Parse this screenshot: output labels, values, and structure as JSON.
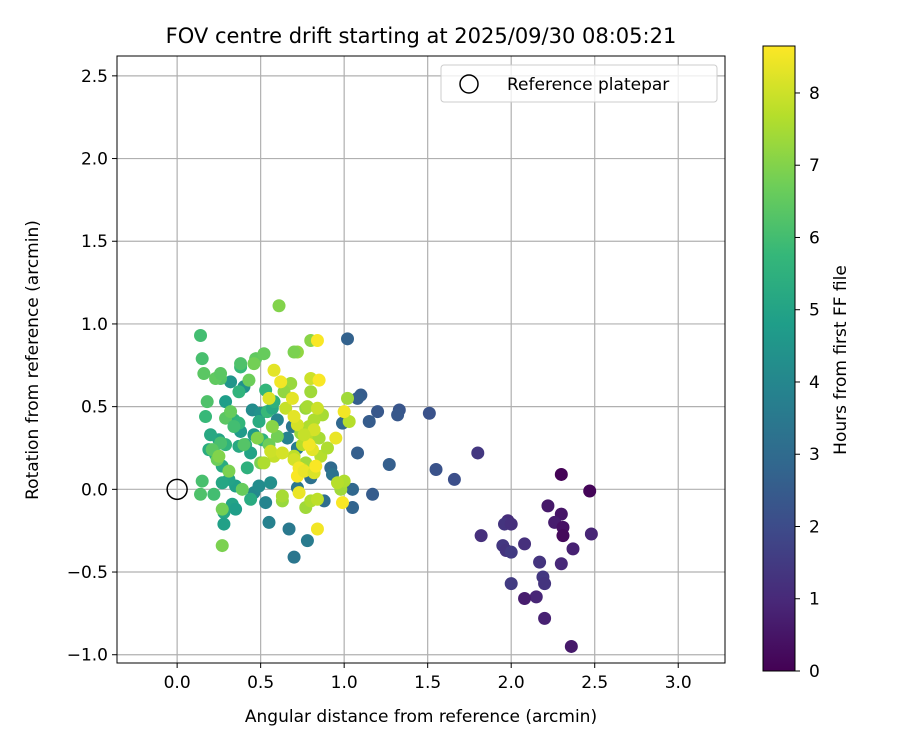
{
  "chart_data": {
    "type": "scatter",
    "title": "FOV centre drift starting at 2025/09/30 08:05:21",
    "xlabel": "Angular distance from reference (arcmin)",
    "ylabel": "Rotation from reference (arcmin)",
    "xlim": [
      -0.36,
      3.28
    ],
    "ylim": [
      -1.05,
      2.62
    ],
    "xticks": [
      0.0,
      0.5,
      1.0,
      1.5,
      2.0,
      2.5,
      3.0
    ],
    "xtick_labels": [
      "0.0",
      "0.5",
      "1.0",
      "1.5",
      "2.0",
      "2.5",
      "3.0"
    ],
    "yticks": [
      -1.0,
      -0.5,
      0.0,
      0.5,
      1.0,
      1.5,
      2.0,
      2.5
    ],
    "ytick_labels": [
      "−1.0",
      "−0.5",
      "0.0",
      "0.5",
      "1.0",
      "1.5",
      "2.0",
      "2.5"
    ],
    "grid": true,
    "legend": {
      "placement": "top-right",
      "entries": [
        {
          "label": "Reference platepar",
          "marker": "open-circle"
        }
      ]
    },
    "reference_point": {
      "x": 0.0,
      "y": 0.0
    },
    "colorbar": {
      "label": "Hours from first FF file",
      "range": [
        0,
        8.65
      ],
      "ticks": [
        0,
        1,
        2,
        3,
        4,
        5,
        6,
        7,
        8
      ],
      "tick_labels": [
        "0",
        "1",
        "2",
        "3",
        "4",
        "5",
        "6",
        "7",
        "8"
      ],
      "colormap": "viridis",
      "colors": [
        "#440154",
        "#482878",
        "#3e4989",
        "#31688e",
        "#26828e",
        "#1f9e89",
        "#35b779",
        "#6ece58",
        "#b5de2b",
        "#fde725"
      ]
    },
    "points": [
      {
        "x": 2.3,
        "y": 0.09,
        "h": 0.05
      },
      {
        "x": 2.47,
        "y": -0.01,
        "h": 0.1
      },
      {
        "x": 2.22,
        "y": -0.1,
        "h": 0.6
      },
      {
        "x": 2.3,
        "y": -0.15,
        "h": 0.5
      },
      {
        "x": 2.26,
        "y": -0.2,
        "h": 0.7
      },
      {
        "x": 2.31,
        "y": -0.23,
        "h": 0.4
      },
      {
        "x": 2.31,
        "y": -0.28,
        "h": 0.2
      },
      {
        "x": 2.48,
        "y": -0.27,
        "h": 0.9
      },
      {
        "x": 2.37,
        "y": -0.36,
        "h": 0.8
      },
      {
        "x": 1.98,
        "y": -0.19,
        "h": 1.1
      },
      {
        "x": 1.96,
        "y": -0.21,
        "h": 1.3
      },
      {
        "x": 2.0,
        "y": -0.21,
        "h": 1.2
      },
      {
        "x": 1.82,
        "y": -0.28,
        "h": 1.2
      },
      {
        "x": 1.95,
        "y": -0.34,
        "h": 1.4
      },
      {
        "x": 1.97,
        "y": -0.37,
        "h": 1.3
      },
      {
        "x": 2.0,
        "y": -0.38,
        "h": 1.5
      },
      {
        "x": 2.08,
        "y": -0.33,
        "h": 1.2
      },
      {
        "x": 2.17,
        "y": -0.44,
        "h": 1.3
      },
      {
        "x": 2.3,
        "y": -0.45,
        "h": 1.0
      },
      {
        "x": 2.19,
        "y": -0.53,
        "h": 1.4
      },
      {
        "x": 2.2,
        "y": -0.57,
        "h": 1.3
      },
      {
        "x": 2.0,
        "y": -0.57,
        "h": 1.5
      },
      {
        "x": 2.15,
        "y": -0.65,
        "h": 0.9
      },
      {
        "x": 2.08,
        "y": -0.66,
        "h": 0.7
      },
      {
        "x": 2.2,
        "y": -0.78,
        "h": 0.8
      },
      {
        "x": 2.36,
        "y": -0.95,
        "h": 0.6
      },
      {
        "x": 1.8,
        "y": 0.22,
        "h": 1.4
      },
      {
        "x": 1.51,
        "y": 0.46,
        "h": 2.2
      },
      {
        "x": 1.33,
        "y": 0.48,
        "h": 2.3
      },
      {
        "x": 1.32,
        "y": 0.45,
        "h": 2.4
      },
      {
        "x": 1.2,
        "y": 0.47,
        "h": 2.4
      },
      {
        "x": 1.1,
        "y": 0.57,
        "h": 2.5
      },
      {
        "x": 1.08,
        "y": 0.55,
        "h": 2.6
      },
      {
        "x": 1.02,
        "y": 0.91,
        "h": 2.7
      },
      {
        "x": 1.15,
        "y": 0.41,
        "h": 2.5
      },
      {
        "x": 1.55,
        "y": 0.12,
        "h": 2.2
      },
      {
        "x": 1.66,
        "y": 0.06,
        "h": 2.1
      },
      {
        "x": 1.27,
        "y": 0.15,
        "h": 2.6
      },
      {
        "x": 1.08,
        "y": 0.22,
        "h": 2.6
      },
      {
        "x": 1.05,
        "y": 0.0,
        "h": 2.9
      },
      {
        "x": 1.17,
        "y": -0.03,
        "h": 2.5
      },
      {
        "x": 1.05,
        "y": -0.11,
        "h": 2.8
      },
      {
        "x": 0.88,
        "y": -0.07,
        "h": 3.1
      },
      {
        "x": 0.7,
        "y": -0.41,
        "h": 3.4
      },
      {
        "x": 0.67,
        "y": -0.24,
        "h": 3.5
      },
      {
        "x": 0.78,
        "y": -0.31,
        "h": 3.6
      },
      {
        "x": 0.55,
        "y": -0.2,
        "h": 3.8
      },
      {
        "x": 0.53,
        "y": -0.08,
        "h": 3.9
      },
      {
        "x": 0.46,
        "y": -0.02,
        "h": 4.1
      },
      {
        "x": 0.49,
        "y": 0.02,
        "h": 4.2
      },
      {
        "x": 0.56,
        "y": 0.04,
        "h": 4.3
      },
      {
        "x": 0.72,
        "y": 0.01,
        "h": 3.4
      },
      {
        "x": 0.8,
        "y": 0.07,
        "h": 3.2
      },
      {
        "x": 0.92,
        "y": 0.13,
        "h": 3.0
      },
      {
        "x": 0.93,
        "y": 0.09,
        "h": 3.3
      },
      {
        "x": 0.99,
        "y": 0.4,
        "h": 2.9
      },
      {
        "x": 0.69,
        "y": 0.38,
        "h": 3.4
      },
      {
        "x": 0.72,
        "y": 0.25,
        "h": 3.6
      },
      {
        "x": 0.66,
        "y": 0.31,
        "h": 3.8
      },
      {
        "x": 0.6,
        "y": 0.42,
        "h": 3.9
      },
      {
        "x": 0.45,
        "y": 0.48,
        "h": 4.2
      },
      {
        "x": 0.5,
        "y": 0.46,
        "h": 4.4
      },
      {
        "x": 0.46,
        "y": 0.33,
        "h": 4.6
      },
      {
        "x": 0.38,
        "y": 0.35,
        "h": 4.7
      },
      {
        "x": 0.32,
        "y": 0.65,
        "h": 4.5
      },
      {
        "x": 0.4,
        "y": 0.62,
        "h": 4.4
      },
      {
        "x": 0.29,
        "y": 0.53,
        "h": 4.8
      },
      {
        "x": 0.25,
        "y": 0.3,
        "h": 5.0
      },
      {
        "x": 0.2,
        "y": 0.33,
        "h": 5.2
      },
      {
        "x": 0.35,
        "y": 0.02,
        "h": 4.9
      },
      {
        "x": 0.31,
        "y": 0.06,
        "h": 5.0
      },
      {
        "x": 0.27,
        "y": 0.04,
        "h": 5.1
      },
      {
        "x": 0.33,
        "y": -0.09,
        "h": 5.0
      },
      {
        "x": 0.35,
        "y": -0.12,
        "h": 4.8
      },
      {
        "x": 0.28,
        "y": -0.14,
        "h": 5.1
      },
      {
        "x": 0.28,
        "y": -0.21,
        "h": 4.9
      },
      {
        "x": 0.44,
        "y": -0.06,
        "h": 5.3
      },
      {
        "x": 0.37,
        "y": 0.26,
        "h": 5.2
      },
      {
        "x": 0.41,
        "y": 0.27,
        "h": 5.4
      },
      {
        "x": 0.44,
        "y": 0.22,
        "h": 5.0
      },
      {
        "x": 0.42,
        "y": 0.13,
        "h": 5.5
      },
      {
        "x": 0.27,
        "y": 0.14,
        "h": 5.3
      },
      {
        "x": 0.19,
        "y": 0.24,
        "h": 5.3
      },
      {
        "x": 0.23,
        "y": 0.21,
        "h": 5.4
      },
      {
        "x": 0.29,
        "y": 0.27,
        "h": 5.6
      },
      {
        "x": 0.34,
        "y": 0.42,
        "h": 5.5
      },
      {
        "x": 0.37,
        "y": 0.4,
        "h": 5.7
      },
      {
        "x": 0.49,
        "y": 0.41,
        "h": 5.3
      },
      {
        "x": 0.51,
        "y": 0.3,
        "h": 5.6
      },
      {
        "x": 0.54,
        "y": 0.47,
        "h": 5.8
      },
      {
        "x": 0.57,
        "y": 0.49,
        "h": 5.2
      },
      {
        "x": 0.58,
        "y": 0.53,
        "h": 5.5
      },
      {
        "x": 0.53,
        "y": 0.6,
        "h": 5.7
      },
      {
        "x": 0.38,
        "y": 0.74,
        "h": 5.8
      },
      {
        "x": 0.37,
        "y": 0.59,
        "h": 5.6
      },
      {
        "x": 0.17,
        "y": 0.44,
        "h": 5.8
      },
      {
        "x": 0.18,
        "y": 0.53,
        "h": 6.2
      },
      {
        "x": 0.14,
        "y": 0.93,
        "h": 6.0
      },
      {
        "x": 0.15,
        "y": 0.79,
        "h": 6.1
      },
      {
        "x": 0.16,
        "y": 0.7,
        "h": 6.4
      },
      {
        "x": 0.26,
        "y": 0.67,
        "h": 6.3
      },
      {
        "x": 0.23,
        "y": 0.67,
        "h": 6.5
      },
      {
        "x": 0.26,
        "y": 0.7,
        "h": 6.4
      },
      {
        "x": 0.38,
        "y": 0.76,
        "h": 6.2
      },
      {
        "x": 0.47,
        "y": 0.79,
        "h": 6.5
      },
      {
        "x": 0.52,
        "y": 0.82,
        "h": 6.6
      },
      {
        "x": 0.46,
        "y": 0.76,
        "h": 6.8
      },
      {
        "x": 0.43,
        "y": 0.66,
        "h": 6.7
      },
      {
        "x": 0.29,
        "y": 0.43,
        "h": 6.4
      },
      {
        "x": 0.32,
        "y": 0.47,
        "h": 6.6
      },
      {
        "x": 0.34,
        "y": 0.38,
        "h": 6.0
      },
      {
        "x": 0.4,
        "y": 0.27,
        "h": 6.3
      },
      {
        "x": 0.26,
        "y": 0.28,
        "h": 6.1
      },
      {
        "x": 0.21,
        "y": 0.24,
        "h": 6.4
      },
      {
        "x": 0.24,
        "y": 0.18,
        "h": 6.7
      },
      {
        "x": 0.25,
        "y": 0.2,
        "h": 7.0
      },
      {
        "x": 0.31,
        "y": 0.11,
        "h": 6.9
      },
      {
        "x": 0.15,
        "y": 0.05,
        "h": 6.1
      },
      {
        "x": 0.14,
        "y": -0.03,
        "h": 6.2
      },
      {
        "x": 0.22,
        "y": -0.03,
        "h": 6.0
      },
      {
        "x": 0.39,
        "y": 0.0,
        "h": 6.6
      },
      {
        "x": 0.27,
        "y": -0.12,
        "h": 6.8
      },
      {
        "x": 0.27,
        "y": -0.34,
        "h": 6.9
      },
      {
        "x": 0.5,
        "y": 0.16,
        "h": 6.9
      },
      {
        "x": 0.48,
        "y": 0.31,
        "h": 7.0
      },
      {
        "x": 0.55,
        "y": 0.27,
        "h": 6.7
      },
      {
        "x": 0.6,
        "y": 0.32,
        "h": 6.8
      },
      {
        "x": 0.57,
        "y": 0.38,
        "h": 7.1
      },
      {
        "x": 0.61,
        "y": 1.11,
        "h": 7.0
      },
      {
        "x": 0.72,
        "y": 0.83,
        "h": 7.2
      },
      {
        "x": 0.7,
        "y": 0.83,
        "h": 6.9
      },
      {
        "x": 0.8,
        "y": 0.9,
        "h": 7.1
      },
      {
        "x": 0.68,
        "y": 0.64,
        "h": 7.3
      },
      {
        "x": 0.64,
        "y": 0.59,
        "h": 7.2
      },
      {
        "x": 0.77,
        "y": 0.49,
        "h": 7.3
      },
      {
        "x": 0.8,
        "y": 0.59,
        "h": 7.4
      },
      {
        "x": 0.78,
        "y": 0.5,
        "h": 7.5
      },
      {
        "x": 0.87,
        "y": 0.45,
        "h": 7.5
      },
      {
        "x": 0.82,
        "y": 0.42,
        "h": 7.6
      },
      {
        "x": 0.79,
        "y": 0.38,
        "h": 7.6
      },
      {
        "x": 0.74,
        "y": 0.34,
        "h": 7.3
      },
      {
        "x": 0.75,
        "y": 0.27,
        "h": 7.7
      },
      {
        "x": 0.81,
        "y": 0.31,
        "h": 7.8
      },
      {
        "x": 0.85,
        "y": 0.31,
        "h": 7.5
      },
      {
        "x": 0.86,
        "y": 0.2,
        "h": 7.7
      },
      {
        "x": 0.77,
        "y": 0.16,
        "h": 7.4
      },
      {
        "x": 0.7,
        "y": 0.2,
        "h": 7.8
      },
      {
        "x": 0.58,
        "y": 0.2,
        "h": 7.9
      },
      {
        "x": 0.56,
        "y": 0.23,
        "h": 8.0
      },
      {
        "x": 0.52,
        "y": 0.16,
        "h": 7.6
      },
      {
        "x": 0.63,
        "y": -0.07,
        "h": 7.3
      },
      {
        "x": 0.63,
        "y": -0.04,
        "h": 7.5
      },
      {
        "x": 0.77,
        "y": -0.11,
        "h": 7.4
      },
      {
        "x": 0.8,
        "y": -0.07,
        "h": 7.6
      },
      {
        "x": 0.84,
        "y": -0.06,
        "h": 7.8
      },
      {
        "x": 0.98,
        "y": 0.0,
        "h": 7.4
      },
      {
        "x": 1.0,
        "y": 0.05,
        "h": 7.6
      },
      {
        "x": 0.96,
        "y": 0.04,
        "h": 7.7
      },
      {
        "x": 1.02,
        "y": 0.55,
        "h": 7.4
      },
      {
        "x": 1.03,
        "y": 0.41,
        "h": 7.7
      },
      {
        "x": 0.9,
        "y": 0.25,
        "h": 7.6
      },
      {
        "x": 0.65,
        "y": 0.49,
        "h": 7.9
      },
      {
        "x": 0.84,
        "y": 0.49,
        "h": 8.0
      },
      {
        "x": 0.69,
        "y": 0.55,
        "h": 8.3
      },
      {
        "x": 0.72,
        "y": 0.39,
        "h": 8.1
      },
      {
        "x": 0.7,
        "y": 0.18,
        "h": 8.1
      },
      {
        "x": 0.75,
        "y": 0.12,
        "h": 8.0
      },
      {
        "x": 0.81,
        "y": 0.24,
        "h": 8.3
      },
      {
        "x": 0.79,
        "y": 0.27,
        "h": 8.5
      },
      {
        "x": 0.73,
        "y": 0.13,
        "h": 8.5
      },
      {
        "x": 0.72,
        "y": 0.08,
        "h": 8.6
      },
      {
        "x": 0.76,
        "y": 0.11,
        "h": 8.4
      },
      {
        "x": 0.82,
        "y": 0.1,
        "h": 8.2
      },
      {
        "x": 0.83,
        "y": 0.14,
        "h": 8.6
      },
      {
        "x": 0.95,
        "y": 0.31,
        "h": 8.4
      },
      {
        "x": 1.0,
        "y": 0.47,
        "h": 8.5
      },
      {
        "x": 0.99,
        "y": -0.08,
        "h": 8.6
      },
      {
        "x": 0.84,
        "y": -0.24,
        "h": 8.5
      },
      {
        "x": 0.73,
        "y": -0.02,
        "h": 8.4
      },
      {
        "x": 0.63,
        "y": 0.22,
        "h": 8.1
      },
      {
        "x": 0.55,
        "y": 0.55,
        "h": 8.2
      },
      {
        "x": 0.58,
        "y": 0.72,
        "h": 8.3
      },
      {
        "x": 0.62,
        "y": 0.65,
        "h": 8.5
      },
      {
        "x": 0.7,
        "y": 0.44,
        "h": 8.3
      },
      {
        "x": 0.8,
        "y": 0.67,
        "h": 8.0
      },
      {
        "x": 0.85,
        "y": 0.66,
        "h": 8.6
      },
      {
        "x": 0.84,
        "y": 0.9,
        "h": 8.6
      },
      {
        "x": 0.82,
        "y": 0.36,
        "h": 8.1
      },
      {
        "x": 0.76,
        "y": 0.33,
        "h": 7.9
      }
    ]
  }
}
